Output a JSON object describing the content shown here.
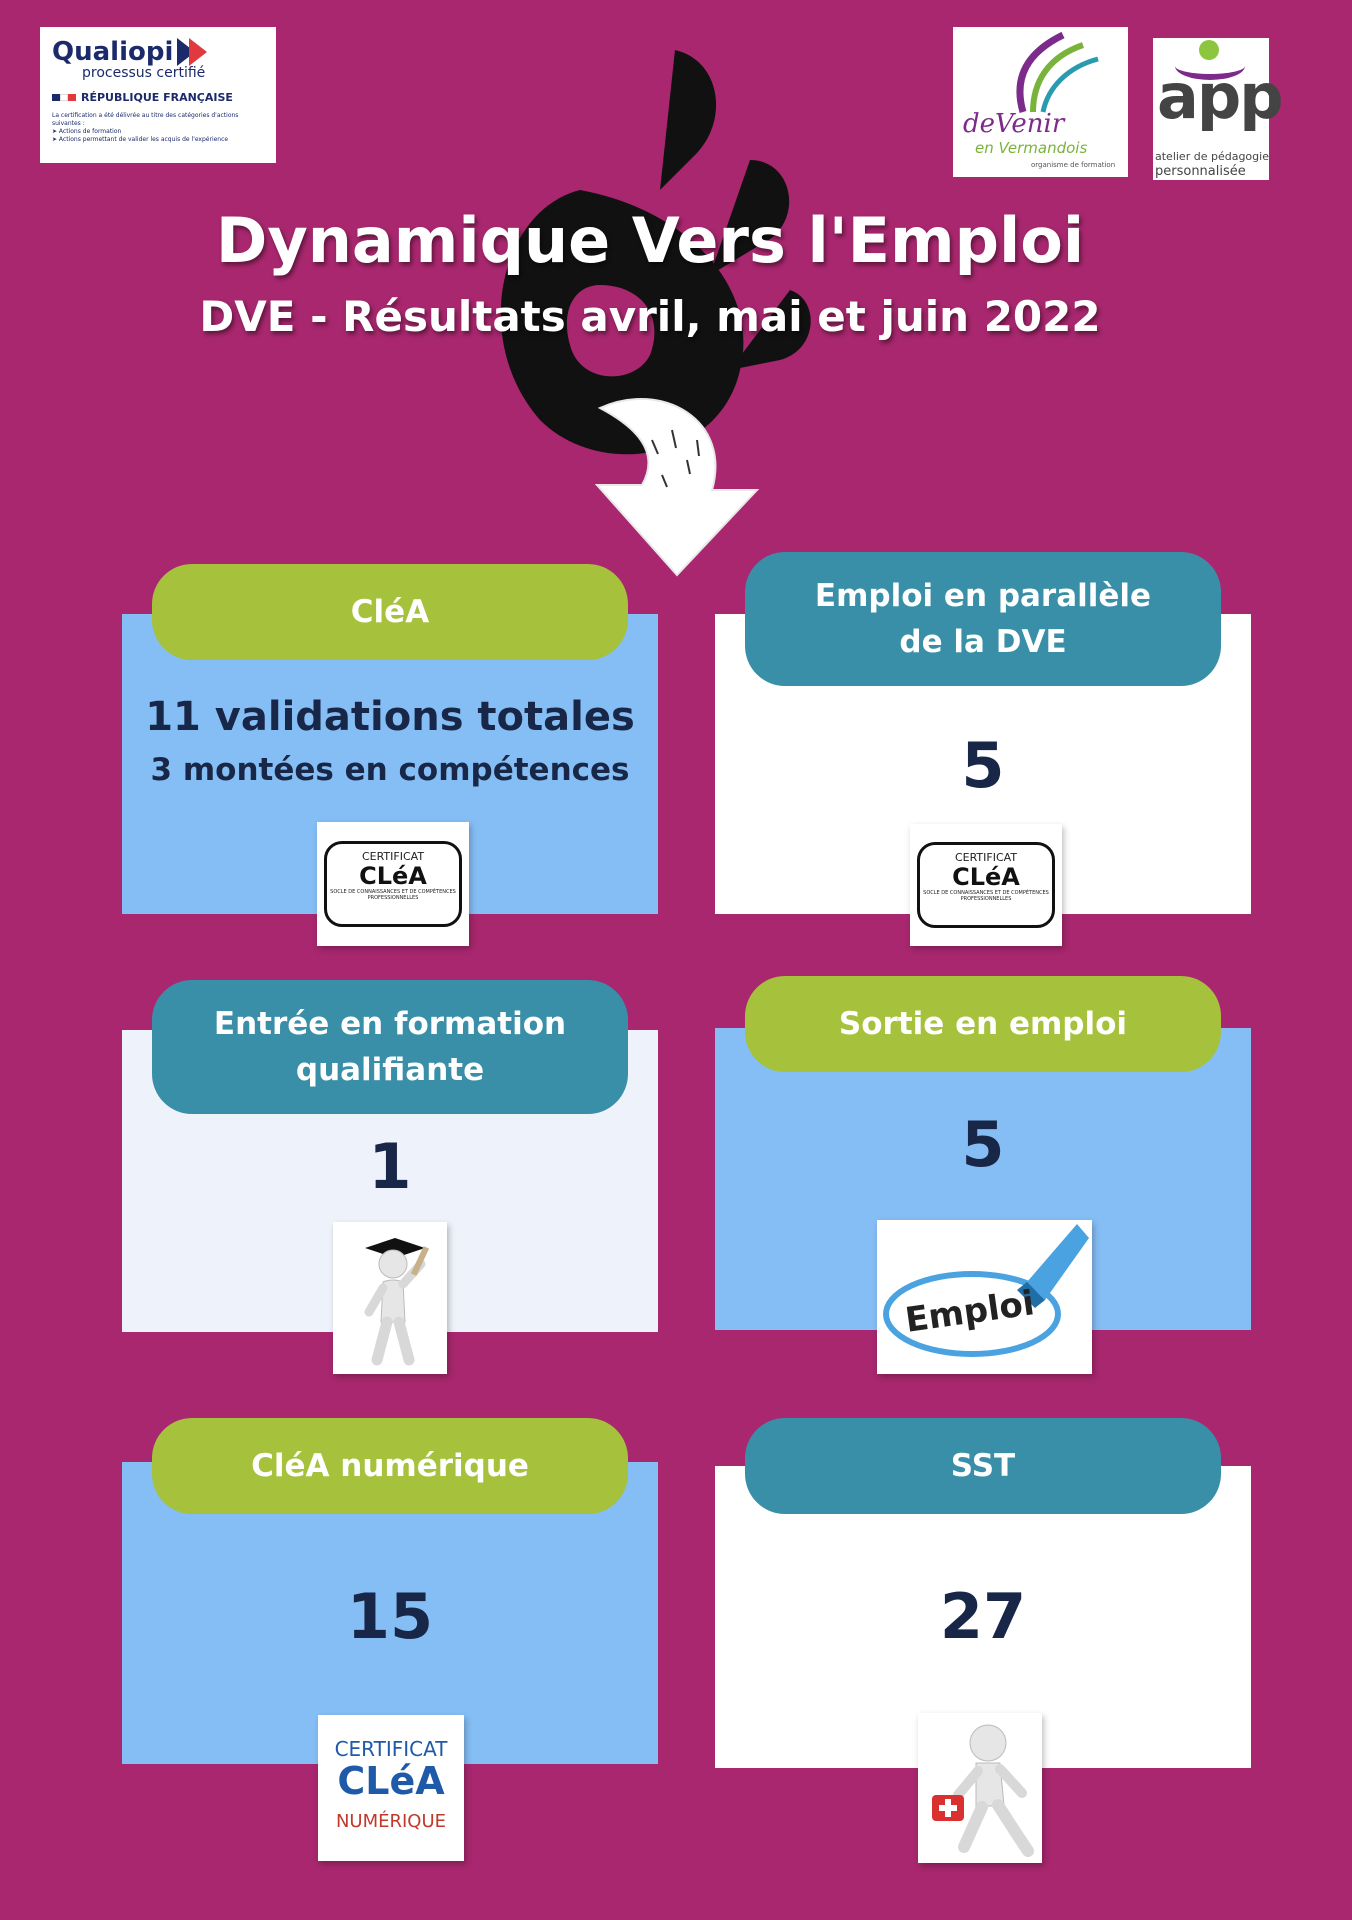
{
  "logos": {
    "qualiopi": {
      "brand": "Qualiopi",
      "subtitle": "processus certifié",
      "republic": "RÉPUBLIQUE FRANÇAISE",
      "fine_print_1": "La certification a été délivrée au titre des catégories d'actions suivantes :",
      "fine_print_2": "➤ Actions de formation",
      "fine_print_3": "➤ Actions permettant de valider les acquis de l'expérience"
    },
    "devenir": {
      "line1": "deVenir",
      "line2": "en Vermandois",
      "line3": "organisme de formation"
    },
    "app": {
      "name": "app",
      "tagline_1": "atelier de pédagogie",
      "tagline_2": "personnalisée"
    }
  },
  "title": "Dynamique Vers l'Emploi",
  "subtitle": "DVE - Résultats avril, mai et juin 2022",
  "cards": [
    {
      "label": "CléA",
      "stat_line_1": "11 validations totales",
      "stat_line_2": "3 montées en compétences",
      "badge_cert": "CERTIFICAT",
      "badge_name": "CLéA",
      "badge_desc": "SOCLE DE CONNAISSANCES ET DE COMPÉTENCES PROFESSIONNELLES"
    },
    {
      "label_line_1": "Emploi en parallèle",
      "label_line_2": "de la DVE",
      "value": "5",
      "badge_cert": "CERTIFICAT",
      "badge_name": "CLéA",
      "badge_desc": "SOCLE DE CONNAISSANCES ET DE COMPÉTENCES PROFESSIONNELLES"
    },
    {
      "label_line_1": "Entrée en formation",
      "label_line_2": "qualifiante",
      "value": "1"
    },
    {
      "label": "Sortie en emploi",
      "value": "5",
      "badge_text": "Emploi"
    },
    {
      "label": "CléA numérique",
      "value": "15",
      "badge_cert": "CERTIFICAT",
      "badge_name": "CLéA",
      "badge_sub": "NUMÉRIQUE"
    },
    {
      "label": "SST",
      "value": "27"
    }
  ],
  "colors": {
    "background": "#a8276e",
    "pill_green": "#a6c13b",
    "pill_teal": "#3a8fa8",
    "card_blue": "#85bef5",
    "number_navy": "#182747"
  }
}
